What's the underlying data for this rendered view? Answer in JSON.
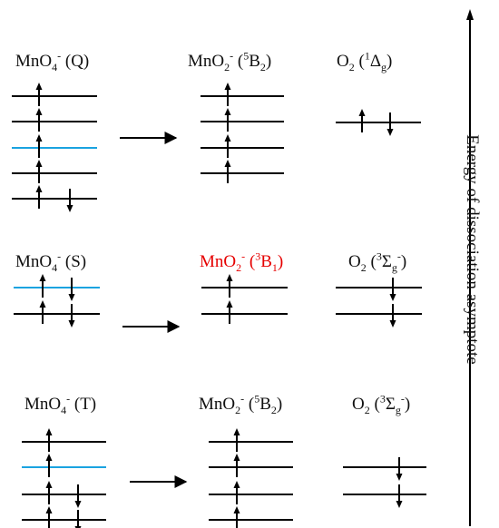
{
  "colors": {
    "line": "#000000",
    "highlight_level": "#1aa3e0",
    "highlight_label": "#e60000"
  },
  "axis": {
    "label": "Energy of dissociation asymptote"
  },
  "rows": [
    {
      "reactant": {
        "formula": "MnO",
        "sub": "4",
        "sup": "-",
        "state": "(Q)",
        "levels": [
          {
            "arrows": "up",
            "color": "black"
          },
          {
            "arrows": "up",
            "color": "black"
          },
          {
            "arrows": "up",
            "color": "blue"
          },
          {
            "arrows": "up",
            "color": "black"
          },
          {
            "arrows": "updown",
            "color": "black"
          }
        ]
      },
      "product": {
        "formula": "MnO",
        "sub": "2",
        "sup": "-",
        "state_pre": "(",
        "state_sup": "5",
        "state_main": "B",
        "state_sub": "2",
        "state_post": ")",
        "red": false,
        "levels": [
          {
            "arrows": "up",
            "color": "black"
          },
          {
            "arrows": "up",
            "color": "black"
          },
          {
            "arrows": "up",
            "color": "black"
          },
          {
            "arrows": "up",
            "color": "black"
          }
        ]
      },
      "o2": {
        "formula": "O",
        "sub": "2",
        "state_pre": "(",
        "state_sup": "1",
        "state_main": "Δ",
        "state_sub": "g",
        "state_sup2": "",
        "state_post": ")",
        "levels": [
          {
            "arrows": "updown-split",
            "color": "black"
          }
        ]
      }
    },
    {
      "reactant": {
        "formula": "MnO",
        "sub": "4",
        "sup": "-",
        "state": "(S)",
        "levels": [
          {
            "arrows": "updown",
            "color": "blue"
          },
          {
            "arrows": "updown",
            "color": "black"
          }
        ]
      },
      "product": {
        "formula": "MnO",
        "sub": "2",
        "sup": "-",
        "state_pre": "(",
        "state_sup": "3",
        "state_main": "B",
        "state_sub": "1",
        "state_post": ")",
        "red": true,
        "levels": [
          {
            "arrows": "up",
            "color": "black"
          },
          {
            "arrows": "up",
            "color": "black"
          }
        ]
      },
      "o2": {
        "formula": "O",
        "sub": "2",
        "state_pre": "(",
        "state_sup": "3",
        "state_main": "Σ",
        "state_sub": "g",
        "state_sup2": "-",
        "state_post": ")",
        "levels": [
          {
            "arrows": "down",
            "color": "black"
          },
          {
            "arrows": "down",
            "color": "black"
          }
        ]
      }
    },
    {
      "reactant": {
        "formula": "MnO",
        "sub": "4",
        "sup": "-",
        "state": "(T)",
        "levels": [
          {
            "arrows": "up",
            "color": "black"
          },
          {
            "arrows": "up",
            "color": "blue"
          },
          {
            "arrows": "updown",
            "color": "black"
          },
          {
            "arrows": "updown",
            "color": "black"
          }
        ]
      },
      "product": {
        "formula": "MnO",
        "sub": "2",
        "sup": "-",
        "state_pre": "(",
        "state_sup": "5",
        "state_main": "B",
        "state_sub": "2",
        "state_post": ")",
        "red": false,
        "levels": [
          {
            "arrows": "up",
            "color": "black"
          },
          {
            "arrows": "up",
            "color": "black"
          },
          {
            "arrows": "up",
            "color": "black"
          },
          {
            "arrows": "up",
            "color": "black"
          }
        ]
      },
      "o2": {
        "formula": "O",
        "sub": "2",
        "state_pre": "(",
        "state_sup": "3",
        "state_main": "Σ",
        "state_sub": "g",
        "state_sup2": "-",
        "state_post": ")",
        "levels": [
          {
            "arrows": "down",
            "color": "black"
          },
          {
            "arrows": "down",
            "color": "black"
          }
        ]
      }
    }
  ]
}
